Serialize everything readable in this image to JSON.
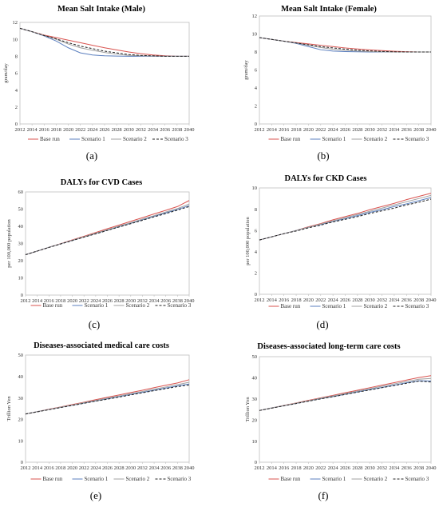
{
  "chart_data": [
    {
      "type": "line",
      "title": "Mean Salt Intake (Male)",
      "ylabel": "gram/day",
      "panel_label": "(a)",
      "x": [
        2012,
        2014,
        2016,
        2018,
        2020,
        2022,
        2024,
        2026,
        2028,
        2030,
        2032,
        2034,
        2036,
        2038,
        2040
      ],
      "x_tick_labels": [
        "2012",
        "2014",
        "2016",
        "2018",
        "2020",
        "2022",
        "2024",
        "2026",
        "2028",
        "2030",
        "2032",
        "2034",
        "2036",
        "2038",
        "2040"
      ],
      "ylim": [
        0,
        12
      ],
      "y_ticks": [
        0,
        2,
        4,
        6,
        8,
        10,
        12
      ],
      "y_tick_labels": [
        "0",
        "2",
        "4",
        "6",
        "8",
        "10",
        "12"
      ],
      "series": [
        {
          "name": "Base run",
          "color": "#d9534f",
          "dash": "",
          "values": [
            11.3,
            10.9,
            10.5,
            10.2,
            9.9,
            9.6,
            9.3,
            9.0,
            8.75,
            8.5,
            8.3,
            8.15,
            8.05,
            8.0,
            8.0
          ]
        },
        {
          "name": "Scenario 1",
          "color": "#5b7fbf",
          "dash": "",
          "values": [
            11.3,
            10.9,
            10.4,
            9.8,
            9.0,
            8.4,
            8.15,
            8.05,
            8.02,
            8.0,
            8.0,
            8.0,
            8.0,
            8.0,
            8.0
          ]
        },
        {
          "name": "Scenario 2",
          "color": "#a0a0a0",
          "dash": "",
          "values": [
            11.3,
            10.9,
            10.45,
            10.0,
            9.45,
            9.0,
            8.7,
            8.45,
            8.25,
            8.1,
            8.05,
            8.02,
            8.0,
            8.0,
            8.0
          ]
        },
        {
          "name": "Scenario 3",
          "color": "#222222",
          "dash": "3,2",
          "values": [
            11.3,
            10.9,
            10.45,
            10.05,
            9.6,
            9.2,
            8.9,
            8.6,
            8.4,
            8.2,
            8.1,
            8.05,
            8.0,
            8.0,
            8.0
          ]
        }
      ]
    },
    {
      "type": "line",
      "title": "Mean Salt Intake (Female)",
      "ylabel": "gram/day",
      "panel_label": "(b)",
      "x": [
        2012,
        2014,
        2016,
        2018,
        2020,
        2022,
        2024,
        2026,
        2028,
        2030,
        2032,
        2034,
        2036,
        2038,
        2040
      ],
      "x_tick_labels": [
        "2012",
        "2014",
        "2016",
        "2018",
        "2020",
        "2022",
        "2024",
        "2026",
        "2028",
        "2030",
        "2032",
        "2034",
        "2036",
        "2038",
        "2040"
      ],
      "ylim": [
        0,
        12
      ],
      "y_ticks": [
        0,
        2,
        4,
        6,
        8,
        10,
        12
      ],
      "y_tick_labels": [
        "0",
        "2",
        "4",
        "6",
        "8",
        "10",
        "12"
      ],
      "series": [
        {
          "name": "Base run",
          "color": "#d9534f",
          "dash": "",
          "values": [
            9.6,
            9.4,
            9.2,
            9.05,
            8.9,
            8.75,
            8.6,
            8.45,
            8.33,
            8.23,
            8.15,
            8.08,
            8.03,
            8.0,
            8.0
          ]
        },
        {
          "name": "Scenario 1",
          "color": "#5b7fbf",
          "dash": "",
          "values": [
            9.6,
            9.4,
            9.2,
            8.95,
            8.6,
            8.25,
            8.1,
            8.05,
            8.02,
            8.0,
            8.0,
            8.0,
            8.0,
            8.0,
            8.0
          ]
        },
        {
          "name": "Scenario 2",
          "color": "#a0a0a0",
          "dash": "",
          "values": [
            9.6,
            9.4,
            9.2,
            9.0,
            8.75,
            8.5,
            8.3,
            8.18,
            8.1,
            8.05,
            8.02,
            8.0,
            8.0,
            8.0,
            8.0
          ]
        },
        {
          "name": "Scenario 3",
          "color": "#222222",
          "dash": "3,2",
          "values": [
            9.6,
            9.4,
            9.2,
            9.0,
            8.8,
            8.6,
            8.45,
            8.32,
            8.2,
            8.12,
            8.06,
            8.02,
            8.0,
            8.0,
            8.0
          ]
        }
      ]
    },
    {
      "type": "line",
      "title": "DALYs for CVD Cases",
      "ylabel": "per 100,000 population",
      "panel_label": "(c)",
      "x": [
        2012,
        2014,
        2016,
        2018,
        2020,
        2022,
        2024,
        2026,
        2028,
        2030,
        2032,
        2034,
        2036,
        2038,
        2040
      ],
      "x_tick_labels": [
        "2012",
        "2014",
        "2016",
        "2018",
        "2020",
        "2022",
        "2024",
        "2026",
        "2028",
        "2030",
        "2032",
        "2034",
        "2036",
        "2038",
        "2040"
      ],
      "ylim": [
        0,
        60
      ],
      "y_ticks": [
        0,
        10,
        20,
        30,
        40,
        50,
        60
      ],
      "y_tick_labels": [
        "0",
        "10",
        "20",
        "30",
        "40",
        "50",
        "60"
      ],
      "series": [
        {
          "name": "Base run",
          "color": "#d9534f",
          "dash": "",
          "values": [
            23.5,
            25.6,
            27.8,
            29.9,
            32.1,
            34.2,
            36.4,
            38.6,
            40.7,
            42.9,
            45.0,
            47.2,
            49.3,
            51.5,
            55.0
          ]
        },
        {
          "name": "Scenario 1",
          "color": "#5b7fbf",
          "dash": "",
          "values": [
            23.5,
            25.6,
            27.8,
            29.8,
            31.8,
            33.8,
            35.8,
            37.8,
            39.8,
            41.8,
            43.8,
            45.8,
            47.8,
            49.8,
            52.0
          ]
        },
        {
          "name": "Scenario 2",
          "color": "#a0a0a0",
          "dash": "",
          "values": [
            23.5,
            25.6,
            27.8,
            29.8,
            31.9,
            33.9,
            36.0,
            38.0,
            40.1,
            42.1,
            44.2,
            46.2,
            48.3,
            50.3,
            53.0
          ]
        },
        {
          "name": "Scenario 3",
          "color": "#222222",
          "dash": "3,2",
          "values": [
            23.5,
            25.6,
            27.7,
            29.7,
            31.7,
            33.7,
            35.6,
            37.6,
            39.6,
            41.5,
            43.5,
            45.5,
            47.4,
            49.4,
            51.5
          ]
        }
      ]
    },
    {
      "type": "line",
      "title": "DALYs for CKD Cases",
      "ylabel": "per 100,000 population",
      "panel_label": "(d)",
      "x": [
        2012,
        2014,
        2016,
        2018,
        2020,
        2022,
        2024,
        2026,
        2028,
        2030,
        2032,
        2034,
        2036,
        2038,
        2040
      ],
      "x_tick_labels": [
        "2012",
        "2014",
        "2016",
        "2018",
        "2020",
        "2022",
        "2024",
        "2026",
        "2028",
        "2030",
        "2032",
        "2034",
        "2036",
        "2038",
        "2040"
      ],
      "ylim": [
        0,
        10
      ],
      "y_ticks": [
        0,
        2,
        4,
        6,
        8,
        10
      ],
      "y_tick_labels": [
        "0",
        "2",
        "4",
        "6",
        "8",
        "10"
      ],
      "series": [
        {
          "name": "Base run",
          "color": "#d9534f",
          "dash": "",
          "values": [
            5.1,
            5.4,
            5.7,
            6.0,
            6.35,
            6.65,
            7.0,
            7.3,
            7.6,
            7.95,
            8.25,
            8.55,
            8.9,
            9.2,
            9.5
          ]
        },
        {
          "name": "Scenario 1",
          "color": "#5b7fbf",
          "dash": "",
          "values": [
            5.1,
            5.4,
            5.7,
            6.0,
            6.3,
            6.55,
            6.85,
            7.1,
            7.4,
            7.7,
            7.95,
            8.25,
            8.5,
            8.8,
            9.1
          ]
        },
        {
          "name": "Scenario 2",
          "color": "#a0a0a0",
          "dash": "",
          "values": [
            5.1,
            5.4,
            5.7,
            6.0,
            6.3,
            6.6,
            6.9,
            7.2,
            7.5,
            7.8,
            8.1,
            8.4,
            8.7,
            9.0,
            9.3
          ]
        },
        {
          "name": "Scenario 3",
          "color": "#222222",
          "dash": "3,2",
          "values": [
            5.1,
            5.4,
            5.7,
            5.95,
            6.25,
            6.5,
            6.8,
            7.05,
            7.3,
            7.6,
            7.85,
            8.1,
            8.4,
            8.65,
            8.95
          ]
        }
      ]
    },
    {
      "type": "line",
      "title": "Diseases-associated medical care costs",
      "ylabel": "Trillion Yen",
      "panel_label": "(e)",
      "x": [
        2012,
        2014,
        2016,
        2018,
        2020,
        2022,
        2024,
        2026,
        2028,
        2030,
        2032,
        2034,
        2036,
        2038,
        2040
      ],
      "x_tick_labels": [
        "2012",
        "2014",
        "2016",
        "2018",
        "2020",
        "2022",
        "2024",
        "2026",
        "2028",
        "2030",
        "2032",
        "2034",
        "2036",
        "2038",
        "2040"
      ],
      "ylim": [
        0,
        50
      ],
      "y_ticks": [
        0,
        10,
        20,
        30,
        40,
        50
      ],
      "y_tick_labels": [
        "0",
        "10",
        "20",
        "30",
        "40",
        "50"
      ],
      "series": [
        {
          "name": "Base run",
          "color": "#d9534f",
          "dash": "",
          "values": [
            22.5,
            23.6,
            24.7,
            25.8,
            26.9,
            28.0,
            29.2,
            30.3,
            31.4,
            32.5,
            33.6,
            34.8,
            35.9,
            37.0,
            38.5
          ]
        },
        {
          "name": "Scenario 1",
          "color": "#5b7fbf",
          "dash": "",
          "values": [
            22.5,
            23.6,
            24.6,
            25.6,
            26.6,
            27.6,
            28.6,
            29.6,
            30.6,
            31.6,
            32.6,
            33.6,
            34.6,
            35.6,
            36.5
          ]
        },
        {
          "name": "Scenario 2",
          "color": "#a0a0a0",
          "dash": "",
          "values": [
            22.5,
            23.6,
            24.6,
            25.7,
            26.7,
            27.8,
            28.8,
            29.9,
            30.9,
            32.0,
            33.0,
            34.1,
            35.1,
            36.2,
            37.3
          ]
        },
        {
          "name": "Scenario 3",
          "color": "#222222",
          "dash": "3,2",
          "values": [
            22.5,
            23.5,
            24.5,
            25.5,
            26.5,
            27.5,
            28.5,
            29.4,
            30.4,
            31.4,
            32.4,
            33.4,
            34.3,
            35.3,
            36.0
          ]
        }
      ]
    },
    {
      "type": "line",
      "title": "Diseases-associated long-term care costs",
      "ylabel": "Trillion Yen",
      "panel_label": "(f)",
      "x": [
        2012,
        2014,
        2016,
        2018,
        2020,
        2022,
        2024,
        2026,
        2028,
        2030,
        2032,
        2034,
        2036,
        2038,
        2040
      ],
      "x_tick_labels": [
        "2012",
        "2014",
        "2016",
        "2018",
        "2020",
        "2022",
        "2024",
        "2026",
        "2028",
        "2030",
        "2032",
        "2034",
        "2036",
        "2038",
        "2040"
      ],
      "ylim": [
        0,
        50
      ],
      "y_ticks": [
        0,
        10,
        20,
        30,
        40,
        50
      ],
      "y_tick_labels": [
        "0",
        "10",
        "20",
        "30",
        "40",
        "50"
      ],
      "series": [
        {
          "name": "Base run",
          "color": "#d9534f",
          "dash": "",
          "values": [
            24.5,
            25.7,
            26.9,
            28.1,
            29.3,
            30.5,
            31.7,
            32.9,
            34.1,
            35.3,
            36.5,
            37.7,
            38.9,
            40.1,
            41.0
          ]
        },
        {
          "name": "Scenario 1",
          "color": "#5b7fbf",
          "dash": "",
          "values": [
            24.5,
            25.7,
            26.8,
            27.9,
            29.0,
            30.1,
            31.1,
            32.2,
            33.3,
            34.4,
            35.4,
            36.5,
            37.6,
            38.6,
            38.5
          ]
        },
        {
          "name": "Scenario 2",
          "color": "#a0a0a0",
          "dash": "",
          "values": [
            24.5,
            25.7,
            26.8,
            28.0,
            29.1,
            30.3,
            31.4,
            32.5,
            33.7,
            34.8,
            36.0,
            37.1,
            38.2,
            39.3,
            39.7
          ]
        },
        {
          "name": "Scenario 3",
          "color": "#222222",
          "dash": "3,2",
          "values": [
            24.5,
            25.6,
            26.7,
            27.8,
            28.9,
            30.0,
            31.0,
            32.1,
            33.2,
            34.2,
            35.3,
            36.3,
            37.4,
            38.4,
            38.0
          ]
        }
      ]
    }
  ]
}
